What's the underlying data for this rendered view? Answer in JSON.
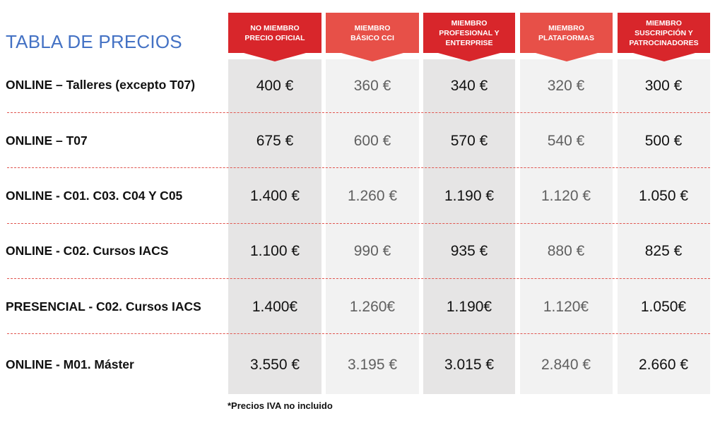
{
  "title": "TABLA DE PRECIOS",
  "columns": [
    {
      "label": "NO MIEMBRO\nPrecio oficial"
    },
    {
      "label": "MIEMBRO\nBÁSICO CCI"
    },
    {
      "label": "MIEMBRO\nPROFESIONAL Y\nENTERPRISE"
    },
    {
      "label": "MIEMBRO\nPLATAFORMAS"
    },
    {
      "label": "MIEMBRO\nSUSCRIPCIÓN Y\nPATROCINADORES"
    }
  ],
  "rows": [
    {
      "label": "ONLINE – Talleres (excepto T07)",
      "prices": [
        "400 €",
        "360 €",
        "340 €",
        "320 €",
        "300 €"
      ]
    },
    {
      "label": "ONLINE –  T07",
      "prices": [
        "675 €",
        "600 €",
        "570 €",
        "540 €",
        "500 €"
      ]
    },
    {
      "label": "ONLINE - C01. C03. C04 Y C05",
      "prices": [
        "1.400 €",
        "1.260 €",
        "1.190 €",
        "1.120 €",
        "1.050 €"
      ]
    },
    {
      "label": "ONLINE - C02. Cursos IACS",
      "prices": [
        "1.100 €",
        "990 €",
        "935 €",
        "880 €",
        "825 €"
      ]
    },
    {
      "label": "PRESENCIAL - C02. Cursos IACS",
      "prices": [
        "1.400€",
        "1.260€",
        "1.190€",
        "1.120€",
        "1.050€"
      ]
    },
    {
      "label": "ONLINE - M01. Máster",
      "prices": [
        "3.550 €",
        "3.195 €",
        "3.015 €",
        "2.840 €",
        "2.660 €"
      ]
    }
  ],
  "note": "*Precios IVA no incluido",
  "colors": {
    "title": "#4472c4",
    "header_dark": "#d8262b",
    "header_light": "#e75048",
    "column_dark": "#e6e5e5",
    "column_light": "#f2f2f2",
    "divider": "#e0554f"
  }
}
